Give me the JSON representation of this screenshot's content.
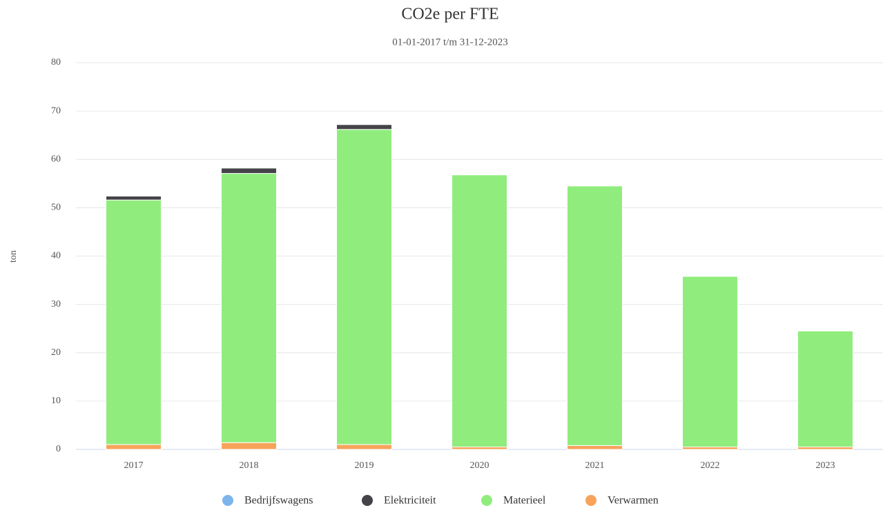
{
  "chart_data": {
    "type": "stacked_bar",
    "title": "CO2e per FTE",
    "subtitle": "01-01-2017 t/m 31-12-2023",
    "y_label": "ton",
    "categories": [
      "2017",
      "2018",
      "2019",
      "2020",
      "2021",
      "2022",
      "2023"
    ],
    "series": [
      {
        "name": "Bedrijfswagens",
        "color": "#7cb5ec",
        "values": [
          0,
          0,
          0,
          0,
          0,
          0,
          0
        ]
      },
      {
        "name": "Elektriciteit",
        "color": "#434348",
        "values": [
          0.8,
          1.1,
          1.0,
          0,
          0,
          0,
          0
        ]
      },
      {
        "name": "Materieel",
        "color": "#90ed7d",
        "values": [
          50.6,
          55.7,
          65.2,
          56.3,
          53.7,
          35.3,
          24.0
        ]
      },
      {
        "name": "Verwarmen",
        "color": "#f7a35c",
        "values": [
          1.0,
          1.4,
          1.0,
          0.5,
          0.8,
          0.5,
          0.5
        ]
      }
    ],
    "ylim": [
      0,
      80
    ],
    "yticks": [
      0,
      10,
      20,
      30,
      40,
      50,
      60,
      70,
      80
    ],
    "grid": true,
    "legend": "bottom"
  }
}
